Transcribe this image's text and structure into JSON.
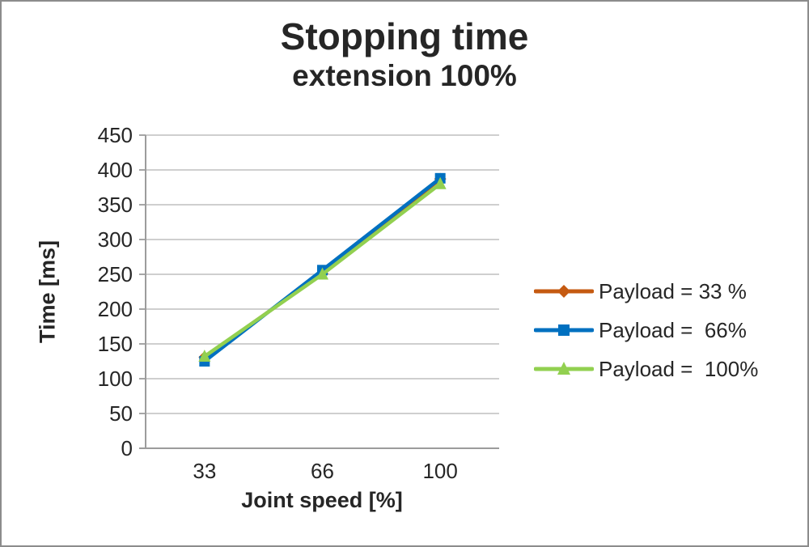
{
  "window": {
    "background": "#ffffff",
    "border_color": "#8c8c8c"
  },
  "title": {
    "line1": "Stopping time",
    "line2": "extension 100%"
  },
  "chart_data": {
    "type": "line",
    "title": "Stopping time extension 100%",
    "categories": [
      "33",
      "66",
      "100"
    ],
    "xlabel": "Joint speed [%]",
    "ylabel": "Time [ms]",
    "ylim": [
      0,
      450
    ],
    "ytick_step": 50,
    "yticks": [
      0,
      50,
      100,
      150,
      200,
      250,
      300,
      350,
      400,
      450
    ],
    "grid": true,
    "grid_color": "#bfbfbf",
    "axis_color": "#9c9c9c",
    "legend_position": "right",
    "series": [
      {
        "name": "Payload = 33 %",
        "marker": "diamond",
        "color": "#C55A11",
        "values": [
          131,
          251,
          387
        ]
      },
      {
        "name": "Payload =  66%",
        "marker": "square",
        "color": "#0070C0",
        "values": [
          125,
          256,
          388
        ]
      },
      {
        "name": "Payload =  100%",
        "marker": "triangle",
        "color": "#92D050",
        "values": [
          132,
          250,
          380
        ]
      }
    ]
  }
}
